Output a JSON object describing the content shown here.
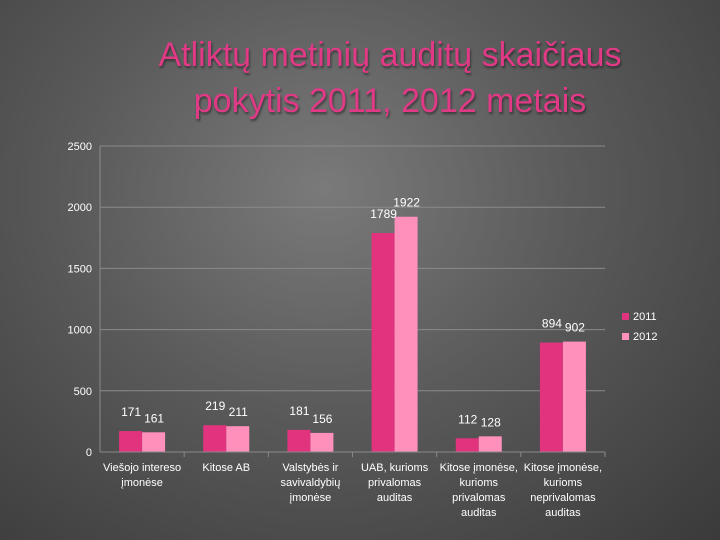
{
  "title_line1": "Atliktų metinių auditų skaičiaus",
  "title_line2": "pokytis 2011, 2012 metais",
  "colors": {
    "s2011": "#e2337f",
    "s2012": "#ff8fbb",
    "title": "#e03a86"
  },
  "chart_data": {
    "type": "bar",
    "categories": [
      [
        "Viešojo intereso",
        "įmonėse"
      ],
      [
        "Kitose AB"
      ],
      [
        "Valstybės ir",
        "savivaldybių",
        "įmonėse"
      ],
      [
        "UAB, kurioms",
        "privalomas",
        "auditas"
      ],
      [
        "Kitose įmonėse,",
        "kurioms",
        "privalomas",
        "auditas"
      ],
      [
        "Kitose įmonėse,",
        "kurioms",
        "neprivalomas",
        "auditas"
      ]
    ],
    "series": [
      {
        "name": "2011",
        "values": [
          171,
          219,
          181,
          1789,
          112,
          894
        ]
      },
      {
        "name": "2012",
        "values": [
          161,
          211,
          156,
          1922,
          128,
          902
        ]
      }
    ],
    "ylim": [
      0,
      2500
    ],
    "yticks": [
      0,
      500,
      1000,
      1500,
      2000,
      2500
    ],
    "grid": true,
    "legend": "right"
  }
}
